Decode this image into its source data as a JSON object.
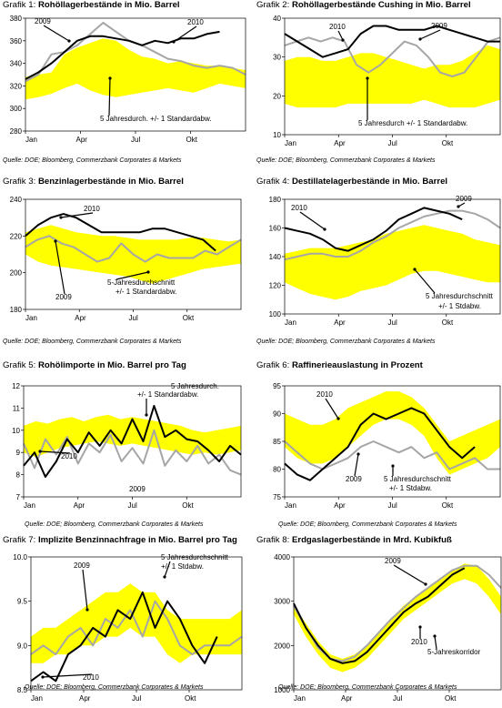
{
  "colors": {
    "band": "#ffff00",
    "line2010": "#000000",
    "line2009": "#a6a6a6"
  },
  "months": [
    "Jan",
    "Apr",
    "Jul",
    "Okt"
  ],
  "source": "Quelle: DOE; Bloomberg, Commerzbank Corporates & Markets",
  "chart_data": [
    {
      "id": "g1",
      "type": "line",
      "prefix": "Grafik 1:",
      "title": "Rohöllagerbestände in Mio. Barrel",
      "ylim": [
        280,
        380
      ],
      "yticks": [
        "280",
        "300",
        "320",
        "340",
        "360",
        "380"
      ],
      "band": {
        "lower": [
          308,
          310,
          313,
          318,
          322,
          316,
          312,
          310,
          312,
          314,
          316,
          318,
          316,
          314,
          318,
          322,
          320,
          318
        ],
        "upper": [
          328,
          330,
          332,
          348,
          354,
          358,
          362,
          360,
          352,
          346,
          344,
          340,
          342,
          340,
          338,
          338,
          336,
          334
        ]
      },
      "series": [
        {
          "name": "2009",
          "values": [
            324,
            330,
            348,
            350,
            356,
            366,
            376,
            368,
            360,
            356,
            350,
            344,
            342,
            338,
            336,
            338,
            336,
            330
          ]
        },
        {
          "name": "2010",
          "values": [
            326,
            332,
            340,
            350,
            360,
            364,
            364,
            362,
            360,
            356,
            360,
            358,
            362,
            362,
            366,
            368
          ]
        }
      ],
      "annotations": [
        "2009",
        "2010",
        "5 Jahresdurch. +/-  1 Standardabw."
      ]
    },
    {
      "id": "g2",
      "type": "line",
      "prefix": "Grafik 2:",
      "title": "Rohöllagerbestände Cushing in Mio. Barrel",
      "ylim": [
        10,
        40
      ],
      "yticks": [
        "10",
        "20",
        "30",
        "40"
      ],
      "band": {
        "lower": [
          18,
          17,
          17,
          17,
          17,
          18,
          18,
          18,
          18,
          18,
          18,
          19,
          18,
          17,
          17,
          17,
          18,
          19
        ],
        "upper": [
          29,
          30,
          30,
          29,
          29,
          30,
          31,
          31,
          30,
          29,
          28,
          27,
          28,
          28,
          29,
          31,
          33,
          32
        ]
      },
      "series": [
        {
          "name": "2010",
          "values": [
            36,
            34,
            32,
            30,
            31,
            32,
            36,
            38,
            38,
            37,
            37,
            37,
            38,
            37,
            36,
            35,
            34,
            34
          ]
        },
        {
          "name": "2009",
          "values": [
            33,
            34,
            35,
            34,
            35,
            34,
            28,
            26,
            28,
            31,
            34,
            33,
            30,
            26,
            25,
            26,
            30,
            34,
            35
          ]
        }
      ],
      "annotations": [
        "2010",
        "2009",
        "5 Jahresdurch  +/-  1 Standardabw."
      ]
    },
    {
      "id": "g3",
      "type": "line",
      "prefix": "Grafik 3:",
      "title": "Benzinlagerbestände in Mio. Barrel",
      "ylim": [
        180,
        240
      ],
      "yticks": [
        "180",
        "200",
        "220",
        "240"
      ],
      "band": {
        "lower": [
          210,
          206,
          204,
          203,
          202,
          201,
          200,
          199,
          198,
          196,
          194,
          196,
          198,
          200,
          202,
          203,
          204,
          205
        ],
        "upper": [
          222,
          224,
          226,
          224,
          222,
          221,
          220,
          220,
          219,
          218,
          218,
          218,
          218,
          219,
          219,
          218,
          217,
          218
        ]
      },
      "series": [
        {
          "name": "2010",
          "values": [
            220,
            226,
            230,
            232,
            230,
            226,
            222,
            222,
            222,
            222,
            224,
            224,
            222,
            220,
            218,
            212
          ]
        },
        {
          "name": "2009",
          "values": [
            214,
            218,
            220,
            216,
            214,
            210,
            206,
            208,
            216,
            210,
            206,
            210,
            208,
            208,
            208,
            212,
            210,
            214,
            218
          ]
        }
      ],
      "annotations": [
        "2010",
        "2009",
        "5-Jahresdurchschnitt",
        "+/-  1 Standardabw."
      ]
    },
    {
      "id": "g4",
      "type": "line",
      "prefix": "Grafik 4:",
      "title": "Destillatelagerbestände in Mio. Barrel",
      "ylim": [
        100,
        180
      ],
      "yticks": [
        "100",
        "120",
        "140",
        "160",
        "180"
      ],
      "band": {
        "lower": [
          122,
          118,
          114,
          112,
          110,
          112,
          116,
          118,
          120,
          124,
          128,
          130,
          130,
          128,
          126,
          124,
          122,
          122
        ],
        "upper": [
          142,
          144,
          146,
          146,
          146,
          148,
          150,
          152,
          156,
          158,
          160,
          162,
          160,
          158,
          156,
          152,
          150,
          148
        ]
      },
      "series": [
        {
          "name": "2010",
          "values": [
            160,
            158,
            156,
            152,
            146,
            144,
            148,
            152,
            158,
            166,
            170,
            174,
            172,
            170,
            166
          ]
        },
        {
          "name": "2009",
          "values": [
            138,
            140,
            142,
            142,
            140,
            140,
            144,
            150,
            154,
            160,
            164,
            168,
            170,
            172,
            172,
            170,
            166,
            160
          ]
        }
      ],
      "annotations": [
        "2010",
        "2009",
        "5 Jahresdurchschnitt",
        "+/-  1 Stdabw."
      ]
    },
    {
      "id": "g5",
      "type": "line",
      "prefix": "Grafik 5:",
      "title": "Rohölimporte in Mio. Barrel pro Tag",
      "ylim": [
        7,
        12
      ],
      "yticks": [
        "7",
        "8",
        "9",
        "10",
        "11",
        "12"
      ],
      "band": {
        "lower": [
          9.0,
          8.8,
          9.0,
          9.2,
          9.3,
          9.4,
          9.5,
          9.4,
          9.3,
          9.4,
          9.3,
          9.2,
          9.1,
          9.0,
          8.9,
          9.0,
          8.9,
          9.0,
          9.1
        ],
        "upper": [
          10.2,
          10.4,
          10.3,
          10.5,
          10.6,
          10.4,
          10.6,
          10.7,
          10.5,
          10.6,
          10.5,
          10.4,
          10.3,
          10.2,
          10.0,
          9.9,
          10.0,
          10.1,
          10.2
        ]
      },
      "series": [
        {
          "name": "2010",
          "values": [
            8.4,
            9.0,
            7.9,
            8.6,
            9.6,
            9.0,
            9.9,
            9.3,
            10.0,
            9.4,
            10.5,
            9.5,
            11.1,
            9.7,
            10.0,
            9.6,
            9.5,
            9.1,
            8.6,
            9.3,
            8.9
          ]
        },
        {
          "name": "2009",
          "values": [
            9.4,
            8.3,
            9.6,
            8.9,
            9.7,
            8.5,
            9.4,
            9.0,
            9.8,
            8.6,
            9.2,
            8.5,
            10.0,
            8.4,
            9.1,
            8.6,
            9.3,
            8.5,
            8.9,
            8.2,
            8.0
          ]
        }
      ],
      "annotations": [
        "5 Jahresdurch.",
        "+/-  1 Standardabw.",
        "2010",
        "2009"
      ]
    },
    {
      "id": "g6",
      "type": "line",
      "prefix": "Grafik 6:",
      "title": "Raffinerieauslastung in Prozent",
      "ylim": [
        75,
        95
      ],
      "yticks": [
        "75",
        "80",
        "85",
        "90",
        "95"
      ],
      "band": {
        "lower": [
          84,
          82,
          81,
          81,
          82,
          84,
          86,
          88,
          89,
          89,
          88,
          86,
          82,
          79,
          80,
          81,
          82,
          84
        ],
        "upper": [
          90,
          89,
          88,
          88,
          89,
          91,
          92,
          93,
          94,
          94,
          93,
          91,
          88,
          85,
          86,
          87,
          88,
          89
        ]
      },
      "series": [
        {
          "name": "2010",
          "values": [
            81,
            79,
            78,
            80,
            82,
            84,
            88,
            90,
            89,
            90,
            91,
            90,
            87,
            84,
            82,
            84
          ]
        },
        {
          "name": "2009",
          "values": [
            85,
            83,
            81,
            80,
            81,
            82,
            84,
            85,
            84,
            83,
            84,
            82,
            83,
            80,
            81,
            82,
            80,
            80
          ]
        }
      ],
      "annotations": [
        "2010",
        "2009",
        "5 Jahresdurchschnitt",
        "+/-  1 Stdabw."
      ]
    },
    {
      "id": "g7",
      "type": "line",
      "prefix": "Grafik 7:",
      "title": "Implizite Benzinnachfrage in Mio. Barrel pro Tag",
      "ylim": [
        8.5,
        10
      ],
      "yticks": [
        "8.5",
        "9.0",
        "9.5",
        "10.0"
      ],
      "band": {
        "lower": [
          8.8,
          8.8,
          8.9,
          8.9,
          9.0,
          9.0,
          9.1,
          9.1,
          9.2,
          9.1,
          9.1,
          8.9,
          8.8,
          8.9,
          8.9,
          8.9,
          8.9,
          8.9
        ],
        "upper": [
          9.1,
          9.2,
          9.2,
          9.3,
          9.4,
          9.5,
          9.6,
          9.6,
          9.7,
          9.6,
          9.6,
          9.4,
          9.3,
          9.3,
          9.3,
          9.3,
          9.3,
          9.4
        ]
      },
      "series": [
        {
          "name": "2010",
          "values": [
            8.6,
            8.7,
            8.6,
            8.9,
            9.0,
            9.2,
            9.1,
            9.4,
            9.3,
            9.6,
            9.2,
            9.5,
            9.3,
            9.0,
            8.8,
            9.1
          ]
        },
        {
          "name": "2009",
          "values": [
            8.9,
            9.0,
            8.9,
            9.1,
            9.2,
            9.0,
            9.3,
            9.2,
            9.4,
            9.1,
            9.5,
            9.3,
            9.0,
            8.9,
            9.0,
            9.0,
            9.0,
            9.1
          ]
        }
      ],
      "annotations": [
        "2009",
        "5 Jahresdurchschnitt",
        "+/-  1 Stdabw.",
        "2010"
      ]
    },
    {
      "id": "g8",
      "type": "line",
      "prefix": "Grafik 8:",
      "title": "Erdgaslagerbestände in Mrd. Kubikfuß",
      "ylim": [
        1000,
        4000
      ],
      "yticks": [
        "1000",
        "2000",
        "3000",
        "4000"
      ],
      "band": {
        "lower": [
          2700,
          2200,
          1800,
          1500,
          1400,
          1500,
          1700,
          2000,
          2300,
          2600,
          2800,
          3000,
          3200,
          3400,
          3500,
          3400,
          3100,
          2700
        ],
        "upper": [
          2900,
          2500,
          2100,
          1800,
          1700,
          1800,
          2000,
          2300,
          2600,
          2900,
          3100,
          3300,
          3500,
          3700,
          3850,
          3800,
          3500,
          3100
        ]
      },
      "series": [
        {
          "name": "2010",
          "values": [
            2950,
            2400,
            2000,
            1700,
            1600,
            1650,
            1850,
            2150,
            2450,
            2750,
            2950,
            3100,
            3350,
            3600,
            3750
          ]
        },
        {
          "name": "2009",
          "values": [
            2900,
            2400,
            1950,
            1700,
            1650,
            1750,
            2000,
            2300,
            2600,
            2850,
            3100,
            3300,
            3500,
            3700,
            3800,
            3800,
            3600,
            3300
          ]
        }
      ],
      "annotations": [
        "2009",
        "2010",
        "5-Jahreskorridor"
      ]
    }
  ]
}
